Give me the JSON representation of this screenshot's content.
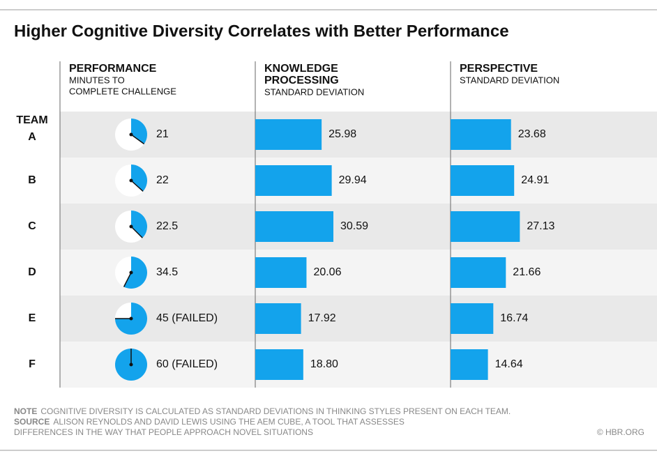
{
  "chart_data": {
    "type": "table-chart",
    "title": "Higher Cognitive Diversity Correlates with Better Performance",
    "row_header": "TEAM",
    "categories": [
      "A",
      "B",
      "C",
      "D",
      "E",
      "F"
    ],
    "series": [
      {
        "type": "clock",
        "header": [
          "PERFORMANCE"
        ],
        "subheader": [
          "MINUTES TO",
          "COMPLETE CHALLENGE"
        ],
        "color": "#13a3ec",
        "values": [
          21,
          22,
          22.5,
          34.5,
          45,
          60
        ],
        "value_labels": [
          "21",
          "22",
          "22.5",
          "34.5",
          "45 (FAILED)",
          "60 (FAILED)"
        ]
      },
      {
        "type": "bar",
        "header": [
          "KNOWLEDGE",
          "PROCESSING"
        ],
        "subheader": [
          "STANDARD DEVIATION"
        ],
        "color": "#13a3ec",
        "values": [
          25.98,
          29.94,
          30.59,
          20.06,
          17.92,
          18.8
        ],
        "value_labels": [
          "25.98",
          "29.94",
          "30.59",
          "20.06",
          "17.92",
          "18.80"
        ]
      },
      {
        "type": "bar",
        "header": [
          "PERSPECTIVE"
        ],
        "subheader": [
          "STANDARD DEVIATION"
        ],
        "color": "#13a3ec",
        "values": [
          23.68,
          24.91,
          27.13,
          21.66,
          16.74,
          14.64
        ]
      }
    ],
    "note_label": "NOTE",
    "note": "COGNITIVE DIVERSITY IS CALCULATED AS STANDARD DEVIATIONS IN THINKING STYLES PRESENT ON EACH TEAM.",
    "source_label": "SOURCE",
    "source": [
      "ALISON REYNOLDS AND DAVID LEWIS USING THE AEM CUBE, A TOOL THAT ASSESSES",
      "DIFFERENCES IN THE WAY THAT PEOPLE APPROACH NOVEL SITUATIONS"
    ],
    "credit": "© HBR.ORG"
  }
}
